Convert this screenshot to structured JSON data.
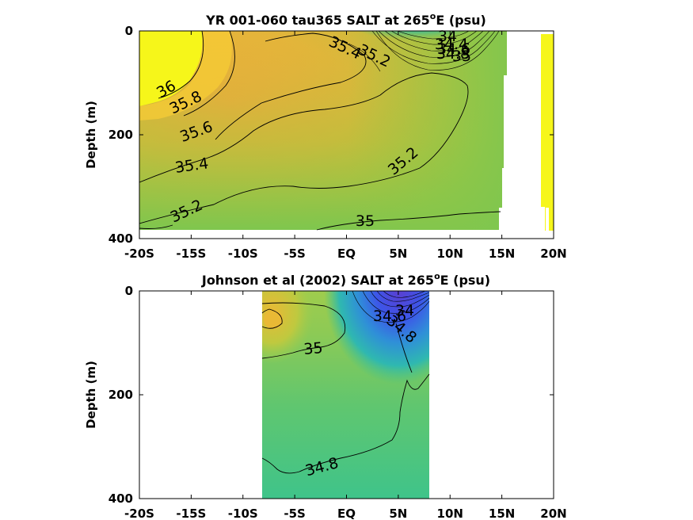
{
  "figure": {
    "colors": {
      "yellow": "#f6f61a",
      "orange": "#f9b23c",
      "green_yellow": "#a9c63e",
      "green": "#5fc76a",
      "teal": "#3fc48a",
      "blue": "#3d55e8",
      "violet": "#5a3fd0",
      "contour": "#000000"
    }
  },
  "chart_data": [
    {
      "type": "heatmap",
      "panel": "top",
      "title_main": "YR 001-060 tau365 SALT at 265",
      "title_sup": "o",
      "title_tail": "E (psu)",
      "xlabel": "",
      "ylabel": "Depth (m)",
      "xlim": [
        -20,
        20
      ],
      "ylim": [
        0,
        400
      ],
      "y_inverted": true,
      "x_ticks": [
        -20,
        -15,
        -10,
        -5,
        0,
        5,
        10,
        15,
        20
      ],
      "x_tick_labels": [
        "-20S",
        "-15S",
        "-10S",
        "-5S",
        "EQ",
        "5N",
        "10N",
        "15N",
        "20N"
      ],
      "y_ticks": [
        0,
        200,
        400
      ],
      "y_tick_labels": [
        "0",
        "200",
        "400"
      ],
      "data_extent_x": [
        -20,
        15
      ],
      "contour_labels": [
        {
          "text": "36",
          "x": -17.5,
          "y": 110,
          "rotate": -30
        },
        {
          "text": "35.8",
          "x": -15.5,
          "y": 145,
          "rotate": -25
        },
        {
          "text": "35.6",
          "x": -14.5,
          "y": 205,
          "rotate": -20
        },
        {
          "text": "35.4",
          "x": -15,
          "y": 265,
          "rotate": -8
        },
        {
          "text": "35.2",
          "x": -15.5,
          "y": 360,
          "rotate": -25
        },
        {
          "text": "35.2",
          "x": 5.8,
          "y": 260,
          "rotate": -40
        },
        {
          "text": "35",
          "x": 1.8,
          "y": 370,
          "rotate": 0
        },
        {
          "text": "35.4",
          "x": -0.2,
          "y": 45,
          "rotate": 25
        },
        {
          "text": "35.2",
          "x": 2.2,
          "y": 60,
          "rotate": 25
        },
        {
          "text": "34",
          "x": 9.8,
          "y": 10,
          "rotate": 0
        },
        {
          "text": "34.4",
          "x": 10.2,
          "y": 25,
          "rotate": 0
        },
        {
          "text": "34.6",
          "x": 10.4,
          "y": 40,
          "rotate": 0
        },
        {
          "text": "34.8",
          "x": 10.3,
          "y": 54,
          "rotate": 0
        },
        {
          "text": "35",
          "x": 11.1,
          "y": 66,
          "rotate": 0
        }
      ]
    },
    {
      "type": "heatmap",
      "panel": "bottom",
      "title_main": "Johnson et al (2002) SALT at 265",
      "title_sup": "o",
      "title_tail": "E (psu)",
      "xlabel": "",
      "ylabel": "Depth (m)",
      "xlim": [
        -20,
        20
      ],
      "ylim": [
        0,
        400
      ],
      "y_inverted": true,
      "x_ticks": [
        -20,
        -15,
        -10,
        -5,
        0,
        5,
        10,
        15,
        20
      ],
      "x_tick_labels": [
        "-20S",
        "-15S",
        "-10S",
        "-5S",
        "EQ",
        "5N",
        "10N",
        "15N",
        "20N"
      ],
      "y_ticks": [
        0,
        200,
        400
      ],
      "y_tick_labels": [
        "0",
        "200",
        "400"
      ],
      "data_extent_x": [
        -8,
        8
      ],
      "contour_labels": [
        {
          "text": "35",
          "x": -3.1,
          "y": 222,
          "rotate": -5
        },
        {
          "text": "34.8",
          "x": -2.2,
          "y": 375,
          "rotate": -15
        },
        {
          "text": "34.6",
          "x": 4.1,
          "y": 100,
          "rotate": 0
        },
        {
          "text": "34.8",
          "x": 5.1,
          "y": 122,
          "rotate": 40
        },
        {
          "text": "34",
          "x": 5.8,
          "y": 80,
          "rotate": 0
        }
      ]
    }
  ]
}
